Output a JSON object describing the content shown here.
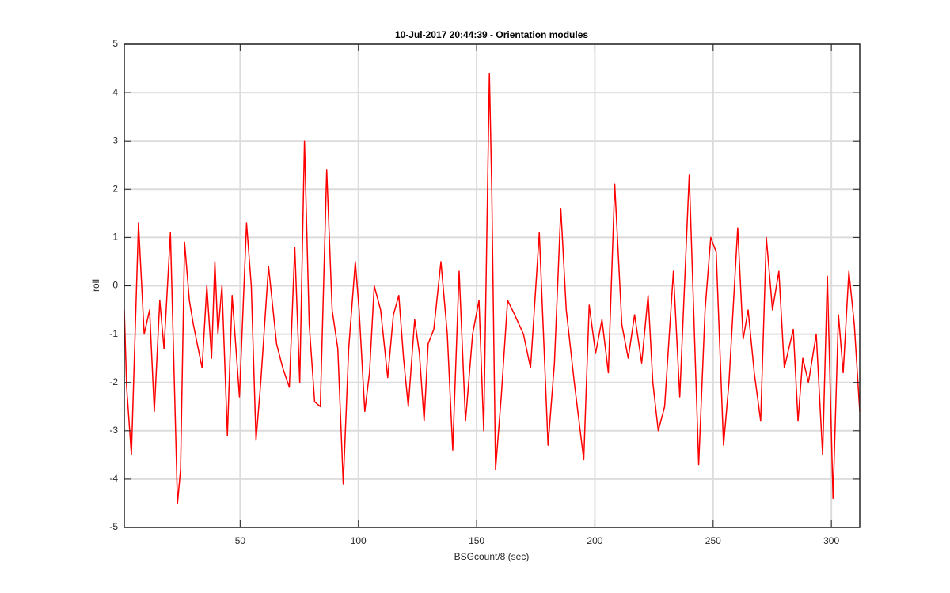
{
  "chart_data": {
    "type": "line",
    "title": "10-Jul-2017 20:44:39 - Orientation modules",
    "xlabel": "BSGcount/8 (sec)",
    "ylabel": "roll",
    "x": [
      1,
      2,
      4,
      7,
      9.4,
      11.7,
      13.7,
      16,
      17.8,
      20.5,
      23.5,
      24.8,
      26.5,
      28.5,
      30.2,
      33.9,
      35.9,
      37.9,
      39.3,
      40.6,
      42.3,
      44.6,
      46.6,
      49.7,
      52.7,
      54.7,
      56.7,
      58.7,
      62,
      65.4,
      68,
      70.8,
      73.1,
      75.2,
      77.2,
      79.2,
      81.5,
      83.9,
      86.6,
      88.9,
      91.3,
      93.6,
      95.9,
      98.7,
      100.3,
      102.7,
      104.7,
      106.7,
      109.4,
      112.4,
      114.8,
      117.1,
      119.1,
      121.1,
      123.8,
      125.8,
      127.8,
      129.5,
      131.9,
      134.9,
      137.6,
      139.9,
      142.6,
      145.3,
      148.3,
      151,
      153,
      155.4,
      156.4,
      158,
      160.4,
      163.1,
      166.1,
      169.8,
      172.8,
      176.5,
      180.2,
      182.9,
      185.6,
      187.9,
      191.3,
      195.3,
      197.6,
      200.3,
      203,
      205.7,
      208.4,
      211.4,
      214.1,
      216.8,
      219.8,
      222.5,
      224.5,
      226.8,
      229.5,
      233.2,
      235.9,
      239.9,
      243.9,
      246.6,
      249,
      251.3,
      254.4,
      256.7,
      260.4,
      262.7,
      264.8,
      267.4,
      270.1,
      272.5,
      275.1,
      277.8,
      280.1,
      283.9,
      285.9,
      287.9,
      290.3,
      293.6,
      296.3,
      298.3,
      300.7,
      303,
      305,
      307.4,
      309.7,
      312
    ],
    "series": [
      {
        "name": "roll",
        "color": "#ff0000",
        "values": [
          -0.5,
          -2.1,
          -3.5,
          1.3,
          -1.0,
          -0.5,
          -2.6,
          -0.3,
          -1.3,
          1.1,
          -4.5,
          -3.8,
          0.9,
          -0.3,
          -0.8,
          -1.7,
          0,
          -1.5,
          0.5,
          -1.0,
          0,
          -3.1,
          -0.2,
          -2.3,
          1.3,
          0,
          -3.2,
          -2.0,
          0.4,
          -1.2,
          -1.7,
          -2.1,
          0.8,
          -2.0,
          3.0,
          -0.8,
          -2.4,
          -2.5,
          2.4,
          -0.5,
          -1.3,
          -4.1,
          -1.3,
          0.5,
          -0.5,
          -2.6,
          -1.8,
          0,
          -0.5,
          -1.9,
          -0.6,
          -0.2,
          -1.5,
          -2.5,
          -0.7,
          -1.4,
          -2.8,
          -1.2,
          -0.9,
          0.5,
          -1.0,
          -3.4,
          0.3,
          -2.8,
          -1.0,
          -0.3,
          -3.0,
          4.4,
          2.0,
          -3.8,
          -2.3,
          -0.3,
          -0.6,
          -1.0,
          -1.7,
          1.1,
          -3.3,
          -1.6,
          1.6,
          -0.5,
          -2.0,
          -3.6,
          -0.4,
          -1.4,
          -0.7,
          -1.8,
          2.1,
          -0.8,
          -1.5,
          -0.6,
          -1.6,
          -0.2,
          -2.0,
          -3.0,
          -2.5,
          0.3,
          -2.3,
          2.3,
          -3.7,
          -0.5,
          1.0,
          0.7,
          -3.3,
          -2.0,
          1.2,
          -1.1,
          -0.5,
          -1.8,
          -2.8,
          1.0,
          -0.5,
          0.3,
          -1.7,
          -0.9,
          -2.8,
          -1.5,
          -2.0,
          -1.0,
          -3.5,
          0.2,
          -4.4,
          -0.6,
          -1.8,
          0.3,
          -0.8,
          -2.6
        ]
      }
    ],
    "xlim": [
      1,
      312
    ],
    "ylim": [
      -5,
      5
    ],
    "xticks": [
      50,
      100,
      150,
      200,
      250,
      300
    ],
    "yticks": [
      -5,
      -4,
      -3,
      -2,
      -1,
      0,
      1,
      2,
      3,
      4,
      5
    ],
    "grid": true
  }
}
